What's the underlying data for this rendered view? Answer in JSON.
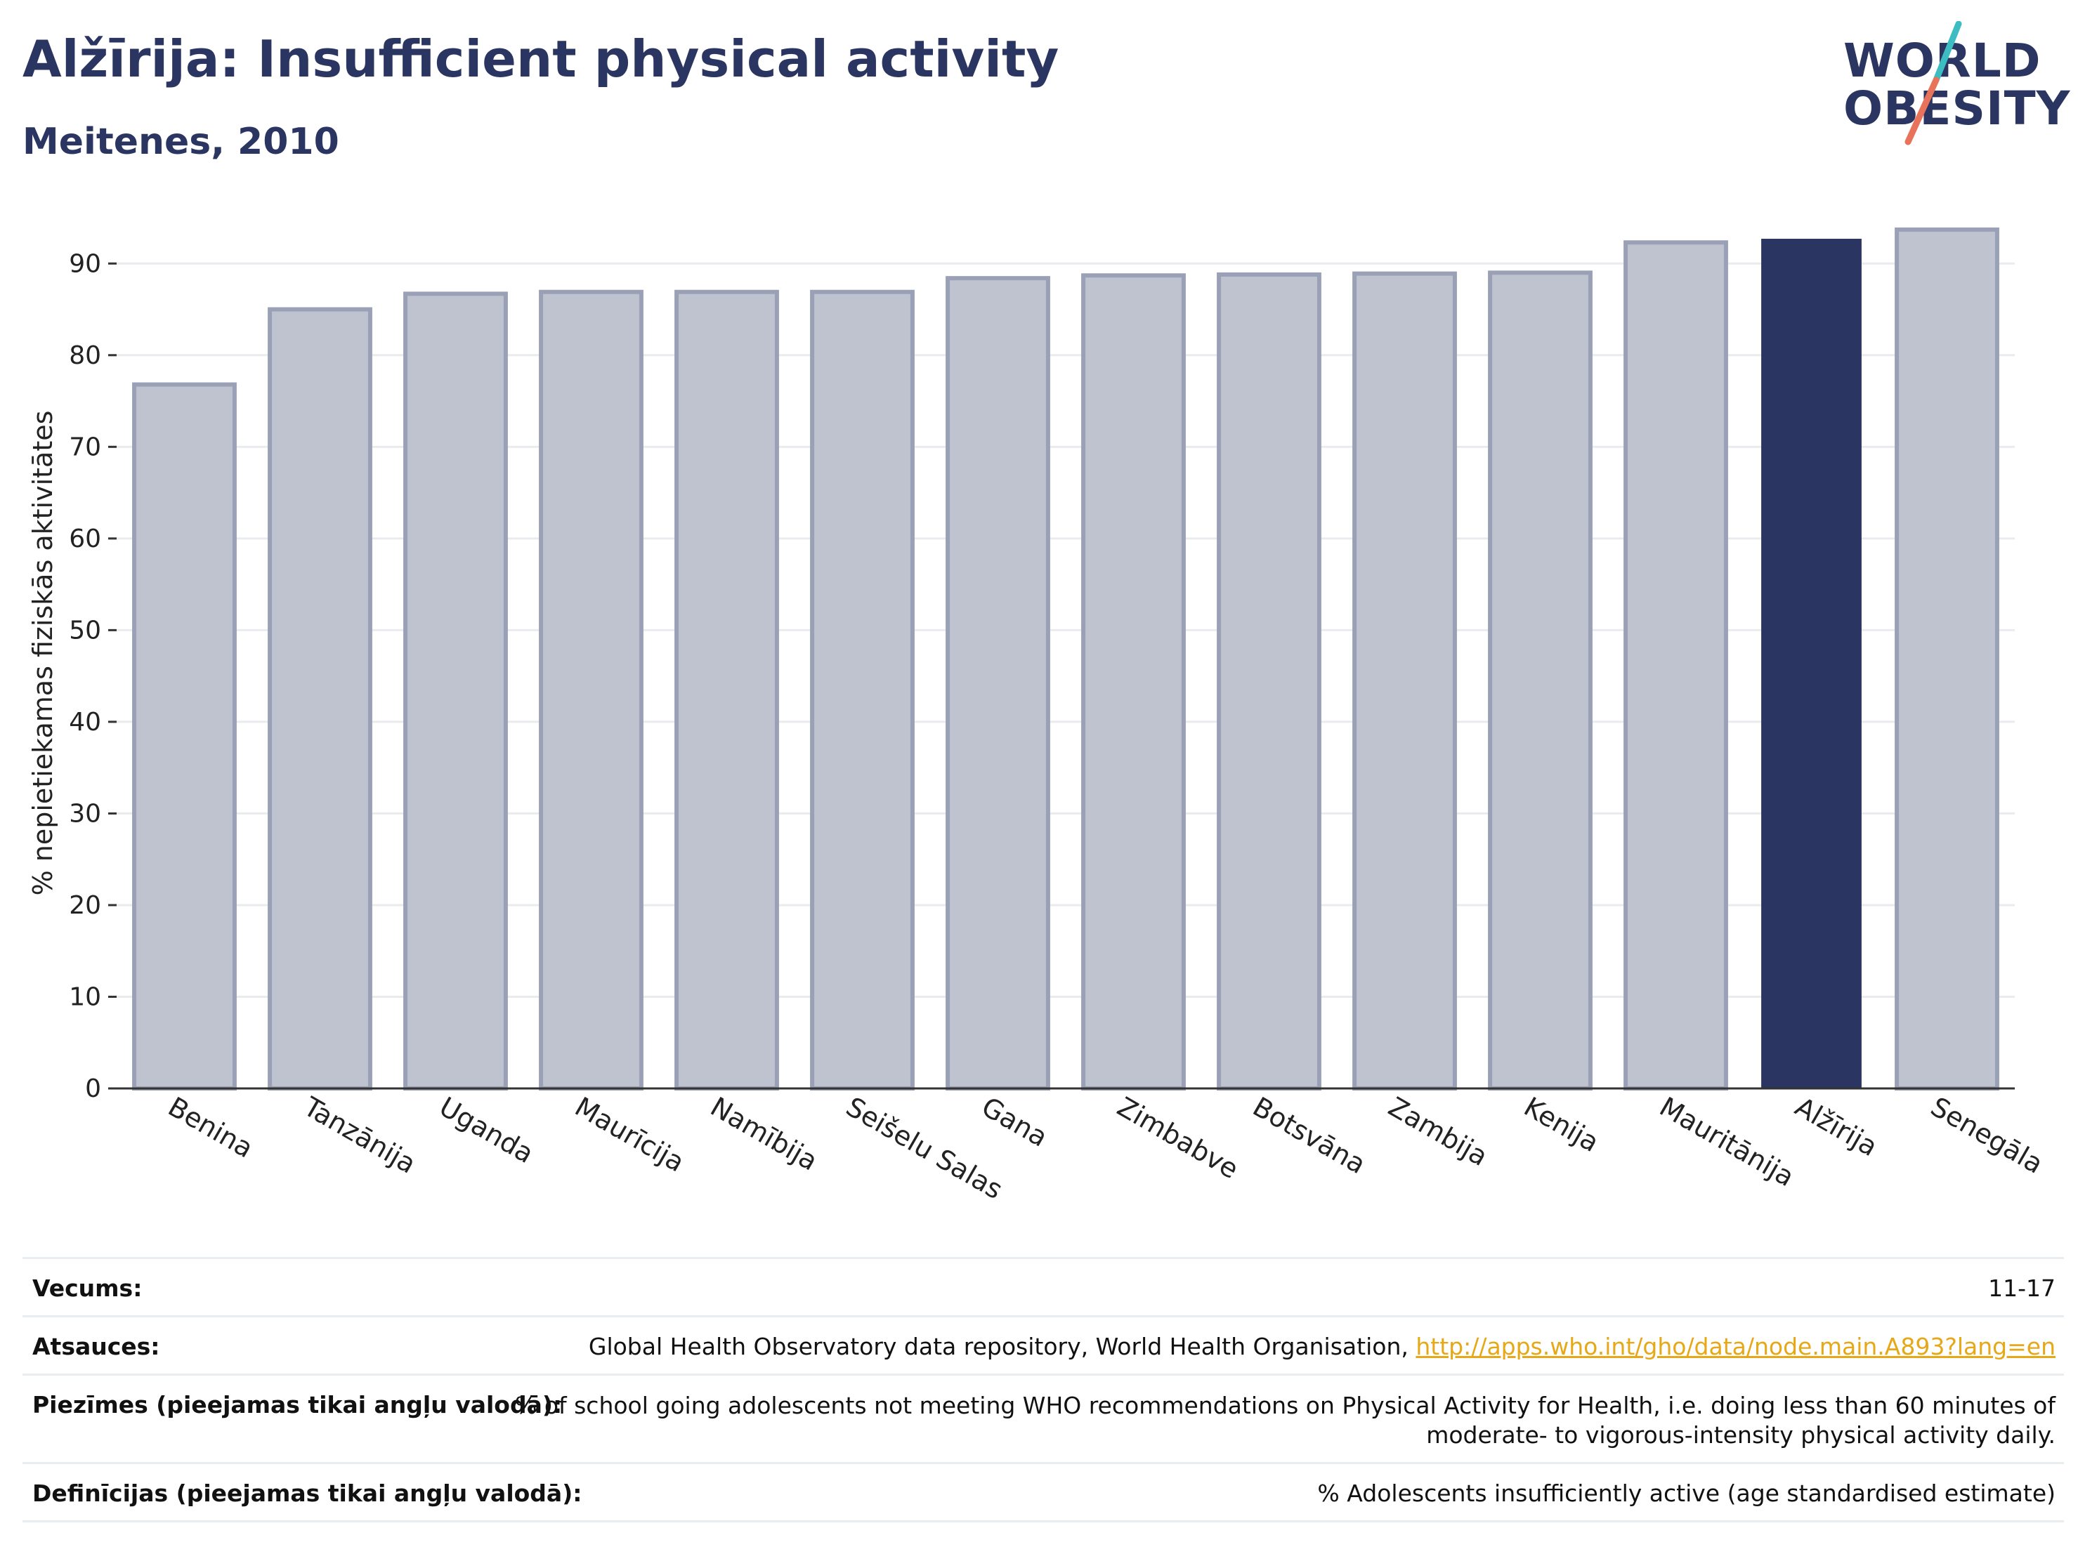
{
  "header": {
    "title": "Alžīrija: Insufficient physical activity",
    "subtitle": "Meitenes, 2010"
  },
  "logo": {
    "line1": "WORLD",
    "line2": "OBESITY",
    "text_color": "#2b3561",
    "slash_colors": [
      "#3dbdc1",
      "#e8735a"
    ]
  },
  "chart_data": {
    "type": "bar",
    "ylabel": "% nepietiekamas fiziskās aktivitātes",
    "xlabel": "",
    "ylim": [
      0,
      95
    ],
    "yticks": [
      0,
      10,
      20,
      30,
      40,
      50,
      60,
      70,
      80,
      90
    ],
    "grid": true,
    "categories": [
      "Benina",
      "Tanzānija",
      "Uganda",
      "Maurīcija",
      "Namībija",
      "Seišelu Salas",
      "Gana",
      "Zimbabve",
      "Botsvāna",
      "Zambija",
      "Kenija",
      "Mauritānija",
      "Alžīrija",
      "Senegāla"
    ],
    "values": [
      76.8,
      85.0,
      86.7,
      86.9,
      86.9,
      86.9,
      88.4,
      88.7,
      88.8,
      88.9,
      89.0,
      92.3,
      92.7,
      93.7
    ],
    "highlight": "Alžīrija",
    "colors": {
      "bar": "#bfc3cf",
      "bar_border": "#9aa0b6",
      "highlight": "#2b3561",
      "grid": "#e9ebef",
      "axis": "#333333"
    }
  },
  "info_table": [
    {
      "label": "Vecums:",
      "value": "11-17"
    },
    {
      "label": "Atsauces:",
      "value": "Global Health Observatory data repository, World Health Organisation, ",
      "link": "http://apps.who.int/gho/data/node.main.A893?lang=en"
    },
    {
      "label": "Piezīmes (pieejamas tikai angļu valodā):",
      "value_line1": "% of school going adolescents not meeting WHO recommendations on Physical Activity for Health, i.e. doing less than 60 minutes of",
      "value_line2": "moderate- to vigorous-intensity physical activity daily."
    },
    {
      "label": "Definīcijas (pieejamas tikai angļu valodā):",
      "value": "% Adolescents insufficiently active (age standardised estimate)"
    }
  ]
}
